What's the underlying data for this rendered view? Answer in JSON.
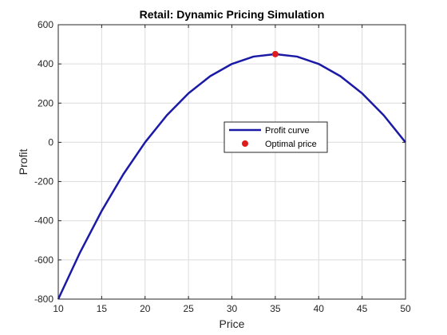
{
  "chart_data": {
    "type": "line",
    "title": "Retail: Dynamic Pricing Simulation",
    "xlabel": "Price",
    "ylabel": "Profit",
    "xlim": [
      10,
      50
    ],
    "ylim": [
      -800,
      600
    ],
    "xticks": [
      10,
      15,
      20,
      25,
      30,
      35,
      40,
      45,
      50
    ],
    "yticks": [
      -800,
      -600,
      -400,
      -200,
      0,
      200,
      400,
      600
    ],
    "grid": true,
    "legend_position": "center-right",
    "series": [
      {
        "name": "Profit curve",
        "kind": "line",
        "color": "#1a1aa6",
        "x": [
          10,
          12.5,
          15,
          17.5,
          20,
          22.5,
          25,
          27.5,
          30,
          32.5,
          35,
          37.5,
          40,
          42.5,
          45,
          47.5,
          50
        ],
        "y": [
          -800,
          -562.5,
          -350,
          -162.5,
          0,
          137.5,
          250,
          337.5,
          400,
          437.5,
          450,
          437.5,
          400,
          337.5,
          250,
          137.5,
          0
        ]
      },
      {
        "name": "Optimal price",
        "kind": "marker",
        "color": "#e01b1b",
        "x": [
          35
        ],
        "y": [
          450
        ]
      }
    ]
  }
}
